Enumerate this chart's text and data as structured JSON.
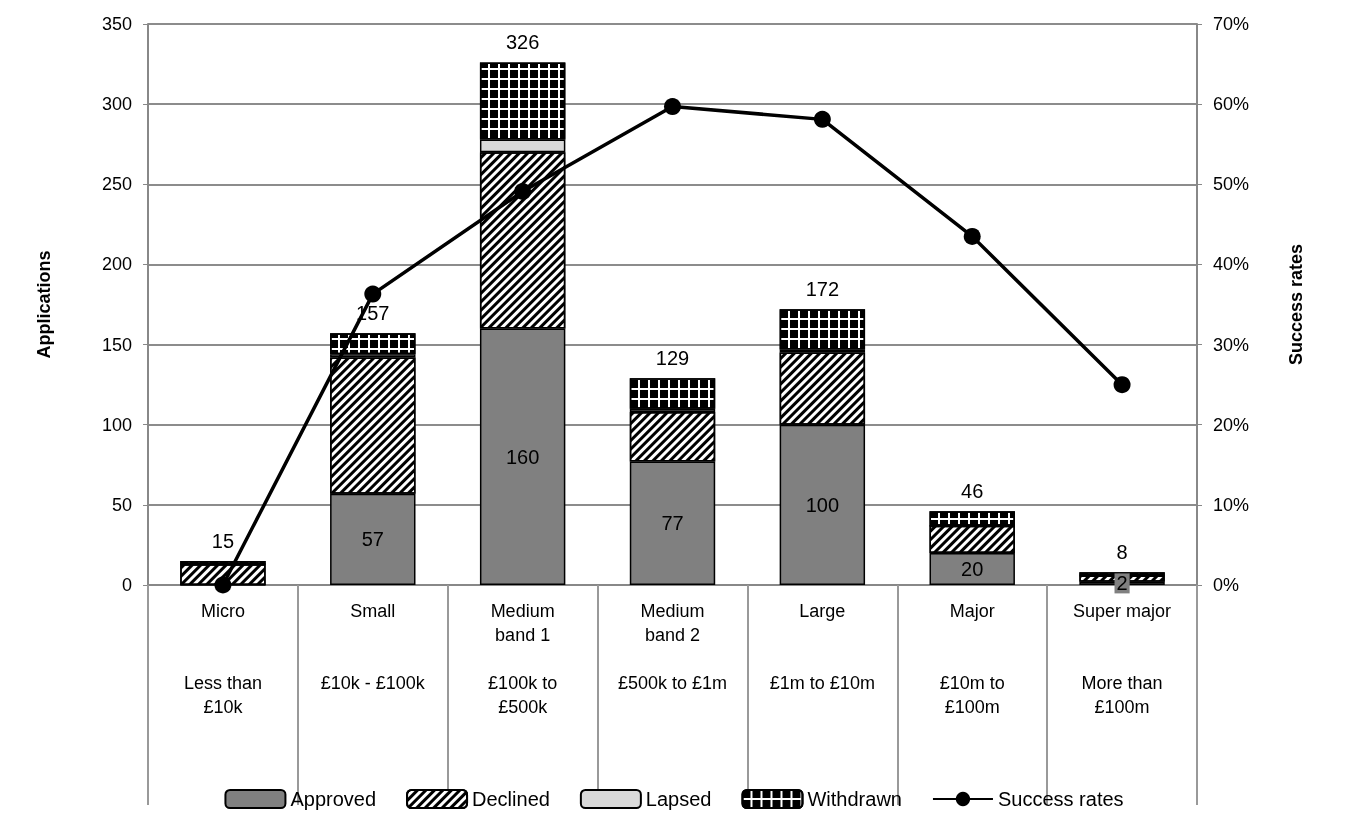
{
  "chart_data": {
    "type": "bar",
    "stacked": true,
    "ylabel": "Applications",
    "y2label": "Success rates",
    "categories": [
      "Micro\n\nLess than\n£10k",
      "Small\n\n£10k - £100k",
      "Medium\nband 1\n\n£100k to\n£500k",
      "Medium\nband 2\n\n£500k to £1m",
      "Large\n\n£1m to £10m",
      "Major\n\n£10m to\n£100m",
      "Super major\n\nMore than\n£100m"
    ],
    "series": [
      {
        "name": "Approved",
        "color": "#808080",
        "values": [
          0,
          57,
          160,
          77,
          100,
          20,
          2
        ],
        "value_labels": [
          null,
          "57",
          "160",
          "77",
          "100",
          "20",
          "2"
        ]
      },
      {
        "name": "Declined",
        "color": "#ffffff",
        "values": [
          13,
          85,
          110,
          31,
          45,
          17,
          4
        ]
      },
      {
        "name": "Lapsed",
        "color": "#d9d9d9",
        "values": [
          0,
          2,
          8,
          2,
          2,
          0,
          0
        ]
      },
      {
        "name": "Withdrawn",
        "color": "#ffffff",
        "values": [
          2,
          13,
          48,
          19,
          25,
          9,
          2
        ]
      },
      {
        "name": "Success rates",
        "type": "line",
        "axis": "y2",
        "color": "#000000",
        "marker": "circle",
        "line_style": "solid",
        "values": [
          0,
          36.3,
          49.1,
          59.7,
          58.1,
          43.5,
          25
        ]
      }
    ],
    "totals": [
      "15",
      "157",
      "326",
      "129",
      "172",
      "46",
      "8"
    ],
    "ylim": [
      0,
      350
    ],
    "yticks": [
      0,
      50,
      100,
      150,
      200,
      250,
      300,
      350
    ],
    "y2lim": [
      0,
      70
    ],
    "y2ticks": [
      {
        "value": 0,
        "label": "0%"
      },
      {
        "value": 10,
        "label": "10%"
      },
      {
        "value": 20,
        "label": "20%"
      },
      {
        "value": 30,
        "label": "30%"
      },
      {
        "value": 40,
        "label": "40%"
      },
      {
        "value": 50,
        "label": "50%"
      },
      {
        "value": 60,
        "label": "60%"
      },
      {
        "value": 70,
        "label": "70%"
      }
    ],
    "grid": "y",
    "legend": "bottom"
  }
}
